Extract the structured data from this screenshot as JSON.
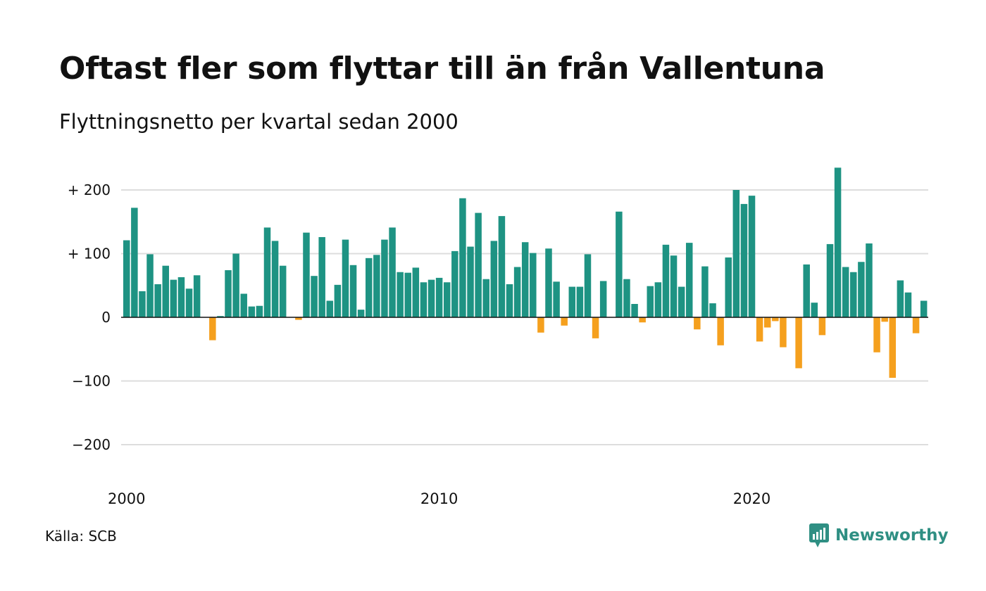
{
  "chart_data": {
    "type": "bar",
    "title": "Oftast fler som flyttar till än från Vallentuna",
    "subtitle": "Flyttningsnetto per kvartal sedan 2000",
    "x_start": "2000 Q1",
    "x_tick_labels": [
      "2000",
      "2010",
      "2020"
    ],
    "y_tick_labels": [
      "+ 200",
      "+ 100",
      "0",
      "−100",
      "−200"
    ],
    "y_ticks": [
      200,
      100,
      0,
      -100,
      -200
    ],
    "ylim": [
      -240,
      240
    ],
    "grid": true,
    "colors": {
      "positive": "#1e9383",
      "negative": "#f5a01e"
    },
    "values": [
      121,
      172,
      41,
      99,
      52,
      81,
      59,
      63,
      45,
      66,
      0,
      -36,
      2,
      74,
      100,
      37,
      17,
      18,
      141,
      120,
      81,
      0,
      -4,
      133,
      65,
      126,
      26,
      51,
      122,
      82,
      12,
      93,
      98,
      122,
      141,
      71,
      70,
      78,
      55,
      59,
      62,
      55,
      104,
      187,
      111,
      164,
      60,
      120,
      159,
      52,
      79,
      118,
      101,
      -24,
      108,
      56,
      -13,
      48,
      48,
      99,
      -33,
      57,
      0,
      166,
      60,
      21,
      -8,
      49,
      55,
      114,
      97,
      48,
      117,
      -19,
      80,
      22,
      -44,
      94,
      200,
      178,
      191,
      -38,
      -16,
      -6,
      -47,
      0,
      -80,
      83,
      23,
      -28,
      115,
      235,
      79,
      71,
      87,
      116,
      -55,
      -7,
      -95,
      58,
      39,
      -25,
      26
    ]
  },
  "source": "Källa: SCB",
  "logo": {
    "name": "Newsworthy",
    "icon": "newsworthy-logo-icon",
    "color": "#2f8f83"
  }
}
